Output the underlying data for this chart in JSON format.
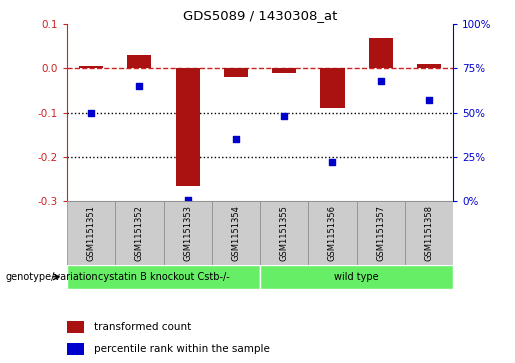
{
  "title": "GDS5089 / 1430308_at",
  "samples": [
    "GSM1151351",
    "GSM1151352",
    "GSM1151353",
    "GSM1151354",
    "GSM1151355",
    "GSM1151356",
    "GSM1151357",
    "GSM1151358"
  ],
  "transformed_count": [
    0.005,
    0.03,
    -0.265,
    -0.02,
    -0.01,
    -0.09,
    0.068,
    0.01
  ],
  "percentile_rank": [
    50,
    65,
    1,
    35,
    48,
    22,
    68,
    57
  ],
  "ylim_left": [
    -0.3,
    0.1
  ],
  "ylim_right": [
    0,
    100
  ],
  "yticks_left": [
    -0.3,
    -0.2,
    -0.1,
    0.0,
    0.1
  ],
  "yticks_right": [
    0,
    25,
    50,
    75,
    100
  ],
  "group1_label": "cystatin B knockout Cstb-/-",
  "group1_indices": [
    0,
    1,
    2,
    3
  ],
  "group2_label": "wild type",
  "group2_indices": [
    4,
    5,
    6,
    7
  ],
  "group_color": "#66ee66",
  "bar_color": "#aa1111",
  "dot_color": "#0000cc",
  "legend_bar_label": "transformed count",
  "legend_dot_label": "percentile rank within the sample",
  "genotype_label": "genotype/variation",
  "dashed_line_color": "#cc2222",
  "dotted_line_color": "#000000",
  "sample_box_color": "#cccccc",
  "sample_box_edge": "#888888"
}
